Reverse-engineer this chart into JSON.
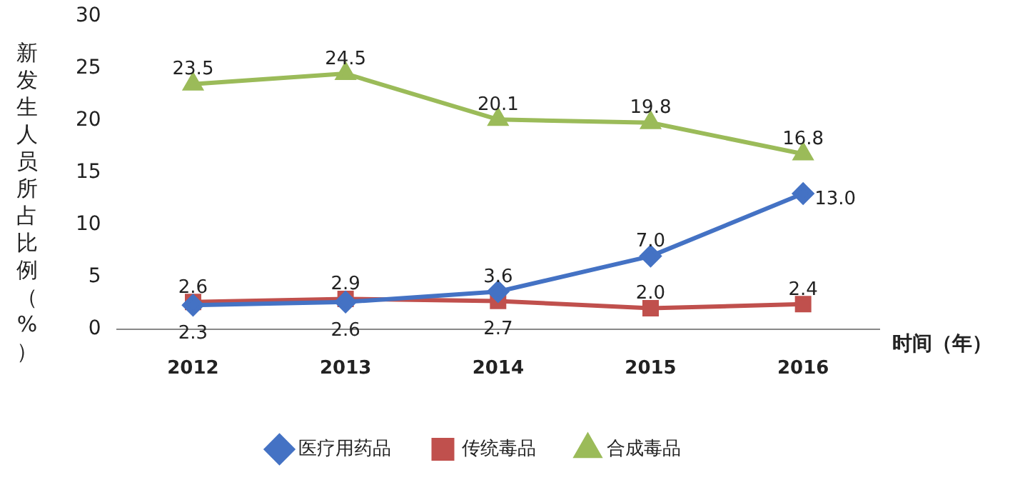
{
  "chart_data": {
    "type": "line",
    "ylabel": "新发生人员所占比例（%）",
    "xlabel": "时间（年）",
    "categories": [
      "2012",
      "2013",
      "2014",
      "2015",
      "2016"
    ],
    "series": [
      {
        "name": "医疗用药品",
        "color": "#4472c4",
        "marker": "diamond",
        "values": [
          2.3,
          2.6,
          3.6,
          7.0,
          13.0
        ],
        "value_labels": [
          "2.3",
          "2.6",
          "3.6",
          "7.0",
          "13.0"
        ]
      },
      {
        "name": "传统毒品",
        "color": "#c0504d",
        "marker": "square",
        "values": [
          2.6,
          2.9,
          2.7,
          2.0,
          2.4
        ],
        "value_labels": [
          "2.6",
          "2.9",
          "2.7",
          "2.0",
          "2.4"
        ]
      },
      {
        "name": "合成毒品",
        "color": "#9bbb59",
        "marker": "triangle",
        "values": [
          23.5,
          24.5,
          20.1,
          19.8,
          16.8
        ],
        "value_labels": [
          "23.5",
          "24.5",
          "20.1",
          "19.8",
          "16.8"
        ]
      }
    ],
    "ylim": [
      0,
      30
    ],
    "yticks": [
      0,
      5,
      10,
      15,
      20,
      25,
      30
    ],
    "grid": false,
    "legend": "bottom",
    "line_style": "solid"
  }
}
